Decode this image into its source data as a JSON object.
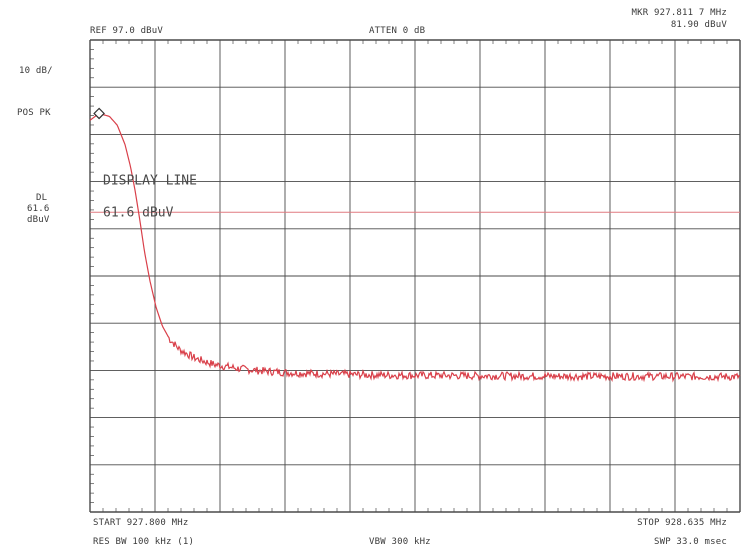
{
  "header": {
    "ref": "REF  97.0 dBuV",
    "atten": "ATTEN 0 dB",
    "marker_line1": "MKR 927.811 7 MHz",
    "marker_line2": "81.90 dBuV"
  },
  "left_panel": {
    "scale": "10 dB/",
    "detector": "POS PK",
    "dl_label": "DL",
    "dl_value": "61.6",
    "dl_unit": "dBuV"
  },
  "footer": {
    "start": "START 927.800 MHz",
    "stop": "STOP 928.635 MHz",
    "rbw": "RES BW 100 kHz (1)",
    "vbw": "VBW 300 kHz",
    "sweep": "SWP 33.0 msec"
  },
  "annotations": {
    "display_line_title": "DISPLAY LINE",
    "display_line_value": "61.6 dBuV"
  },
  "colors": {
    "trace": "#d9404a",
    "display_line": "#e07a80",
    "grid": "#4a4a4a",
    "text": "#3a3a3a"
  },
  "chart_data": {
    "type": "line",
    "title": "",
    "xlabel": "",
    "ylabel": "",
    "xlim": [
      927.8,
      928.635
    ],
    "ylim": [
      0,
      97.0
    ],
    "x_unit": "MHz",
    "y_unit": "dBuV",
    "divisions": {
      "x": 10,
      "y": 10
    },
    "grid": true,
    "display_line": 61.6,
    "marker": {
      "x": 927.8117,
      "y": 81.9
    },
    "series": [
      {
        "values": [
          [
            927.8,
            80.5
          ],
          [
            927.8117,
            81.9
          ],
          [
            927.825,
            81.3
          ],
          [
            927.835,
            79.5
          ],
          [
            927.845,
            75.5
          ],
          [
            927.852,
            71.0
          ],
          [
            927.858,
            66.0
          ],
          [
            927.864,
            60.0
          ],
          [
            927.87,
            53.5
          ],
          [
            927.877,
            47.5
          ],
          [
            927.885,
            42.0
          ],
          [
            927.893,
            38.2
          ],
          [
            927.902,
            35.6
          ],
          [
            927.915,
            33.4
          ],
          [
            927.935,
            31.6
          ],
          [
            927.96,
            30.3
          ],
          [
            927.99,
            29.5
          ],
          [
            928.02,
            29.0
          ],
          [
            928.06,
            28.6
          ],
          [
            928.1,
            28.4
          ],
          [
            928.15,
            28.2
          ],
          [
            928.2,
            28.1
          ],
          [
            928.3,
            28.0
          ],
          [
            928.4,
            27.9
          ],
          [
            928.5,
            27.9
          ],
          [
            928.635,
            27.8
          ]
        ]
      }
    ]
  }
}
